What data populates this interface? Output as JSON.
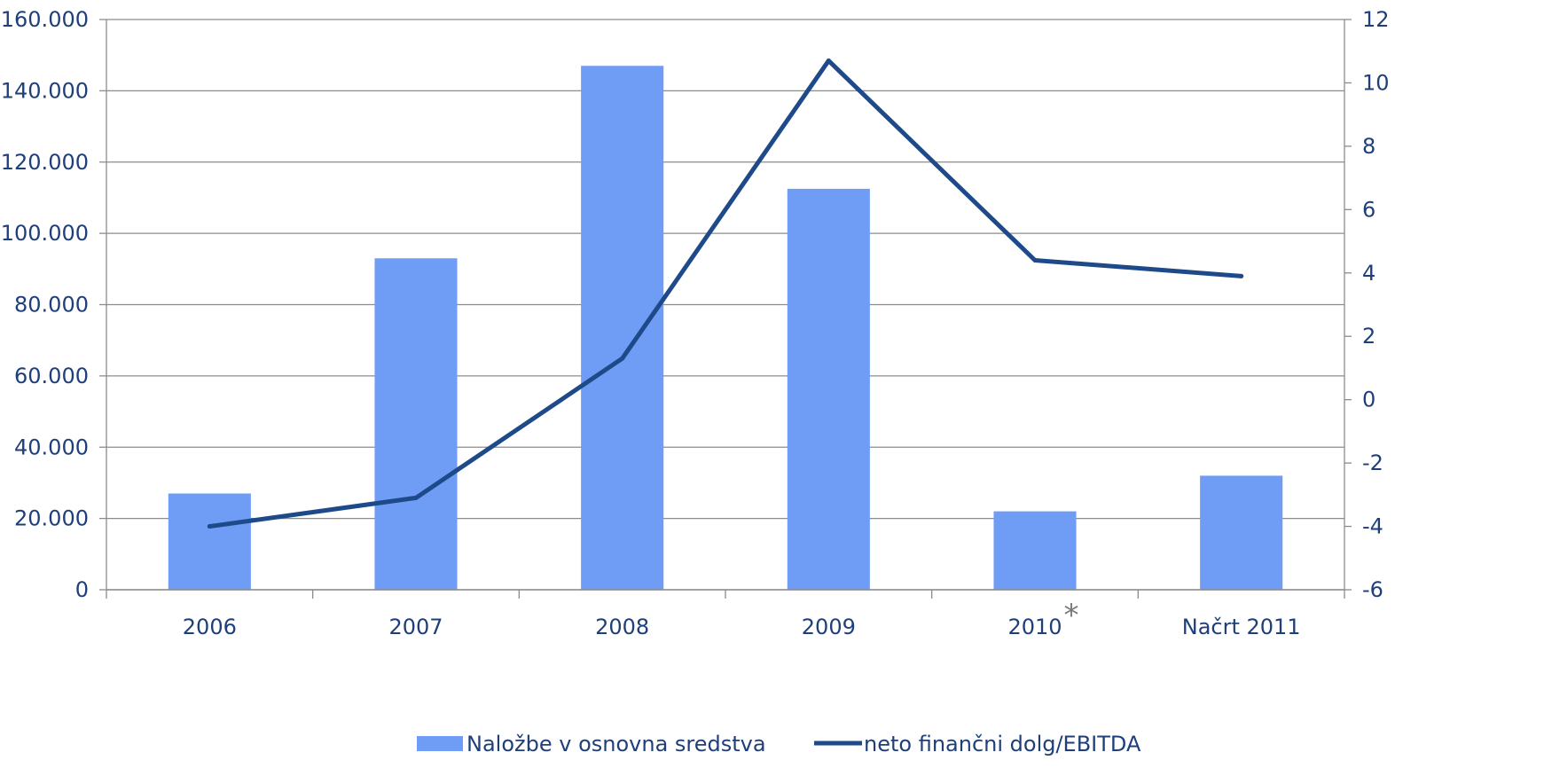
{
  "chart_data": {
    "type": "bar",
    "categories": [
      "2006",
      "2007",
      "2008",
      "2009",
      "2010",
      "Načrt 2011"
    ],
    "category_annotations": {
      "2010": "*"
    },
    "series": [
      {
        "name": "Naložbe v osnovna sredstva",
        "type": "bar",
        "axis": "left",
        "color": "#6f9cf4",
        "values": [
          27000,
          93000,
          147000,
          112500,
          22000,
          32000
        ]
      },
      {
        "name": "neto finančni dolg/EBITDA",
        "type": "line",
        "axis": "right",
        "color": "#1e4a8a",
        "values": [
          -4.0,
          -3.1,
          1.3,
          10.7,
          4.4,
          3.9
        ]
      }
    ],
    "y_left": {
      "ylim": [
        0,
        160000
      ],
      "ticks": [
        0,
        20000,
        40000,
        60000,
        80000,
        100000,
        120000,
        140000,
        160000
      ],
      "tick_labels": [
        "0",
        "20.000",
        "40.000",
        "60.000",
        "80.000",
        "100.000",
        "120.000",
        "140.000",
        "160.000"
      ]
    },
    "y_right": {
      "ylim": [
        -6,
        12
      ],
      "ticks": [
        -6,
        -4,
        -2,
        0,
        2,
        4,
        6,
        8,
        10,
        12
      ],
      "tick_labels": [
        "-6",
        "-4",
        "-2",
        "0",
        "2",
        "4",
        "6",
        "8",
        "10",
        "12"
      ]
    },
    "grid": true,
    "legend_position": "bottom"
  }
}
